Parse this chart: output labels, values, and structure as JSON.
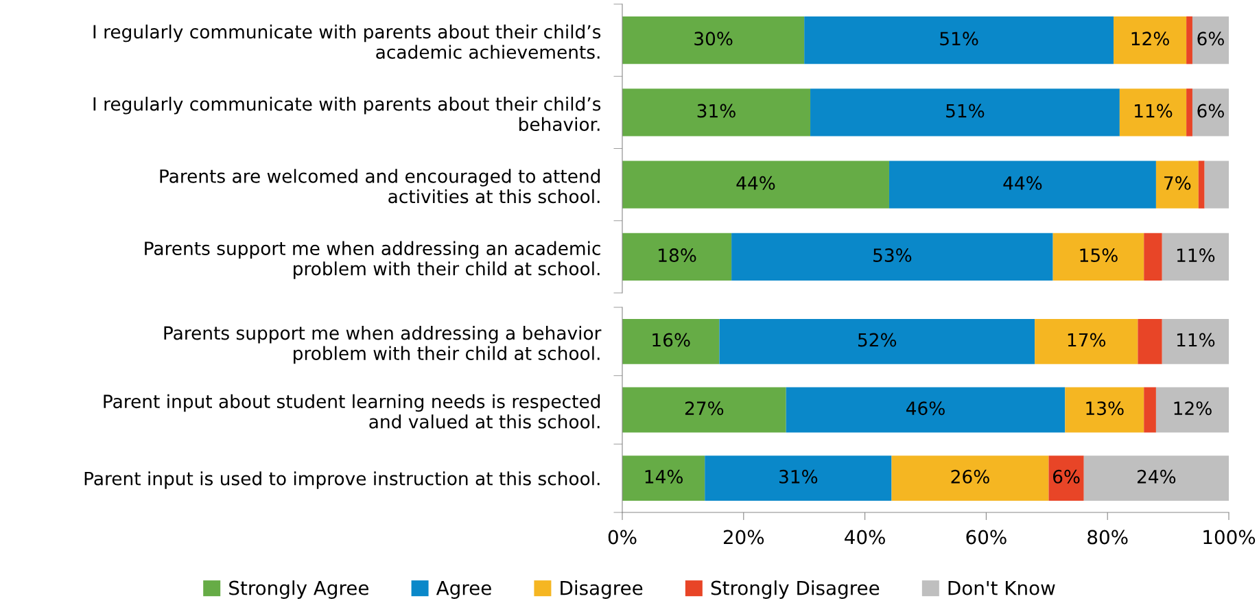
{
  "chart_data": [
    {
      "type": "bar",
      "orientation": "horizontal",
      "stacked": true,
      "tick_labels": "y",
      "grid": false,
      "categories": [
        "I regularly communicate with parents about their child’s\nacademic achievements.",
        "I regularly communicate with parents about their child’s\nbehavior.",
        "Parents are welcomed and encouraged to attend\nactivities at this school.",
        "Parents support me when addressing an academic\nproblem with their child at school."
      ],
      "xlim": [
        0,
        100
      ],
      "series": [
        {
          "color": "#66ac46",
          "values": [
            30,
            31,
            44,
            18
          ],
          "value_labels": [
            "30%",
            "31%",
            "44%",
            "18%"
          ]
        },
        {
          "color": "#0a88c9",
          "values": [
            51,
            51,
            44,
            53
          ],
          "value_labels": [
            "51%",
            "51%",
            "44%",
            "53%"
          ]
        },
        {
          "color": "#f5b622",
          "values": [
            12,
            11,
            7,
            15
          ],
          "value_labels": [
            "12%",
            "11%",
            "7%",
            "15%"
          ]
        },
        {
          "color": "#e84527",
          "values": [
            1,
            1,
            1,
            3
          ],
          "value_labels": [
            null,
            null,
            null,
            null
          ]
        },
        {
          "color": "#bfbfbf",
          "values": [
            6,
            6,
            4,
            11
          ],
          "value_labels": [
            "6%",
            "6%",
            null,
            "11%"
          ]
        }
      ]
    },
    {
      "type": "bar",
      "orientation": "horizontal",
      "stacked": true,
      "legend": "bottom",
      "grid": false,
      "categories": [
        "Parents support me when addressing a behavior\nproblem with their child at school.",
        "Parent input about student learning needs is respected\nand valued at this school.",
        "Parent input is used to improve instruction at this school."
      ],
      "xlim": [
        0,
        100
      ],
      "xticks": [
        {
          "value": 0,
          "label": "0%"
        },
        {
          "value": 20,
          "label": "20%"
        },
        {
          "value": 40,
          "label": "40%"
        },
        {
          "value": 60,
          "label": "60%"
        },
        {
          "value": 80,
          "label": "80%"
        },
        {
          "value": 100,
          "label": "100%"
        }
      ],
      "series": [
        {
          "name": "Strongly Agree",
          "color": "#66ac46",
          "values": [
            16,
            27,
            13.6
          ],
          "value_labels": [
            "16%",
            "27%",
            "14%"
          ]
        },
        {
          "name": "Agree",
          "color": "#0a88c9",
          "values": [
            52,
            46,
            30.8
          ],
          "value_labels": [
            "52%",
            "46%",
            "31%"
          ]
        },
        {
          "name": "Disagree",
          "color": "#f5b622",
          "values": [
            17,
            13,
            25.9
          ],
          "value_labels": [
            "17%",
            "13%",
            "26%"
          ]
        },
        {
          "name": "Strongly Disagree",
          "color": "#e84527",
          "values": [
            4,
            2,
            5.8
          ],
          "value_labels": [
            null,
            null,
            "6%"
          ]
        },
        {
          "name": "Don't Know",
          "color": "#bfbfbf",
          "values": [
            11,
            12,
            23.9
          ],
          "value_labels": [
            "11%",
            "12%",
            "24%"
          ]
        }
      ]
    }
  ]
}
